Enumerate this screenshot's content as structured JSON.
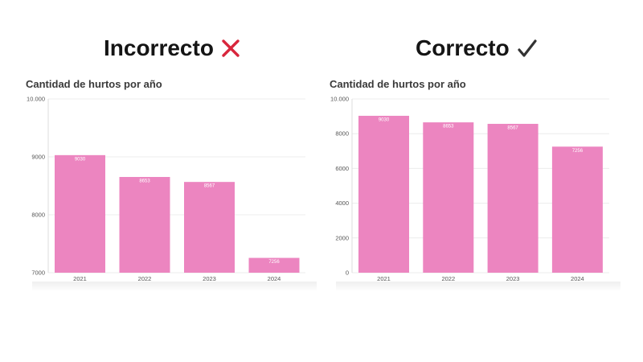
{
  "headings": {
    "left": "Incorrecto",
    "right": "Correcto"
  },
  "icons": {
    "left": "cross-mark-icon",
    "right": "check-mark-icon",
    "cross_color": "#d8263c",
    "check_color": "#333333"
  },
  "colors": {
    "bar": "#ec85c0",
    "grid": "#ececec"
  },
  "chart_data": [
    {
      "type": "bar",
      "title": "Cantidad de hurtos por año",
      "categories": [
        "2021",
        "2022",
        "2023",
        "2024"
      ],
      "values": [
        9030,
        8653,
        8567,
        7256
      ],
      "data_labels": [
        "9030",
        "8653",
        "8567",
        "7256"
      ],
      "ylim": [
        7000,
        10000
      ],
      "yticks": [
        7000,
        8000,
        9000,
        10000
      ],
      "ytick_labels": [
        "7000",
        "8000",
        "9000",
        "10.000"
      ],
      "grid": true,
      "legend": "none"
    },
    {
      "type": "bar",
      "title": "Cantidad de hurtos por año",
      "categories": [
        "2021",
        "2022",
        "2023",
        "2024"
      ],
      "values": [
        9030,
        8653,
        8567,
        7256
      ],
      "data_labels": [
        "9030",
        "8653",
        "8567",
        "7256"
      ],
      "ylim": [
        0,
        10000
      ],
      "yticks": [
        0,
        2000,
        4000,
        6000,
        8000,
        10000
      ],
      "ytick_labels": [
        "0",
        "2000",
        "4000",
        "6000",
        "8000",
        "10.000"
      ],
      "grid": true,
      "legend": "none"
    }
  ]
}
